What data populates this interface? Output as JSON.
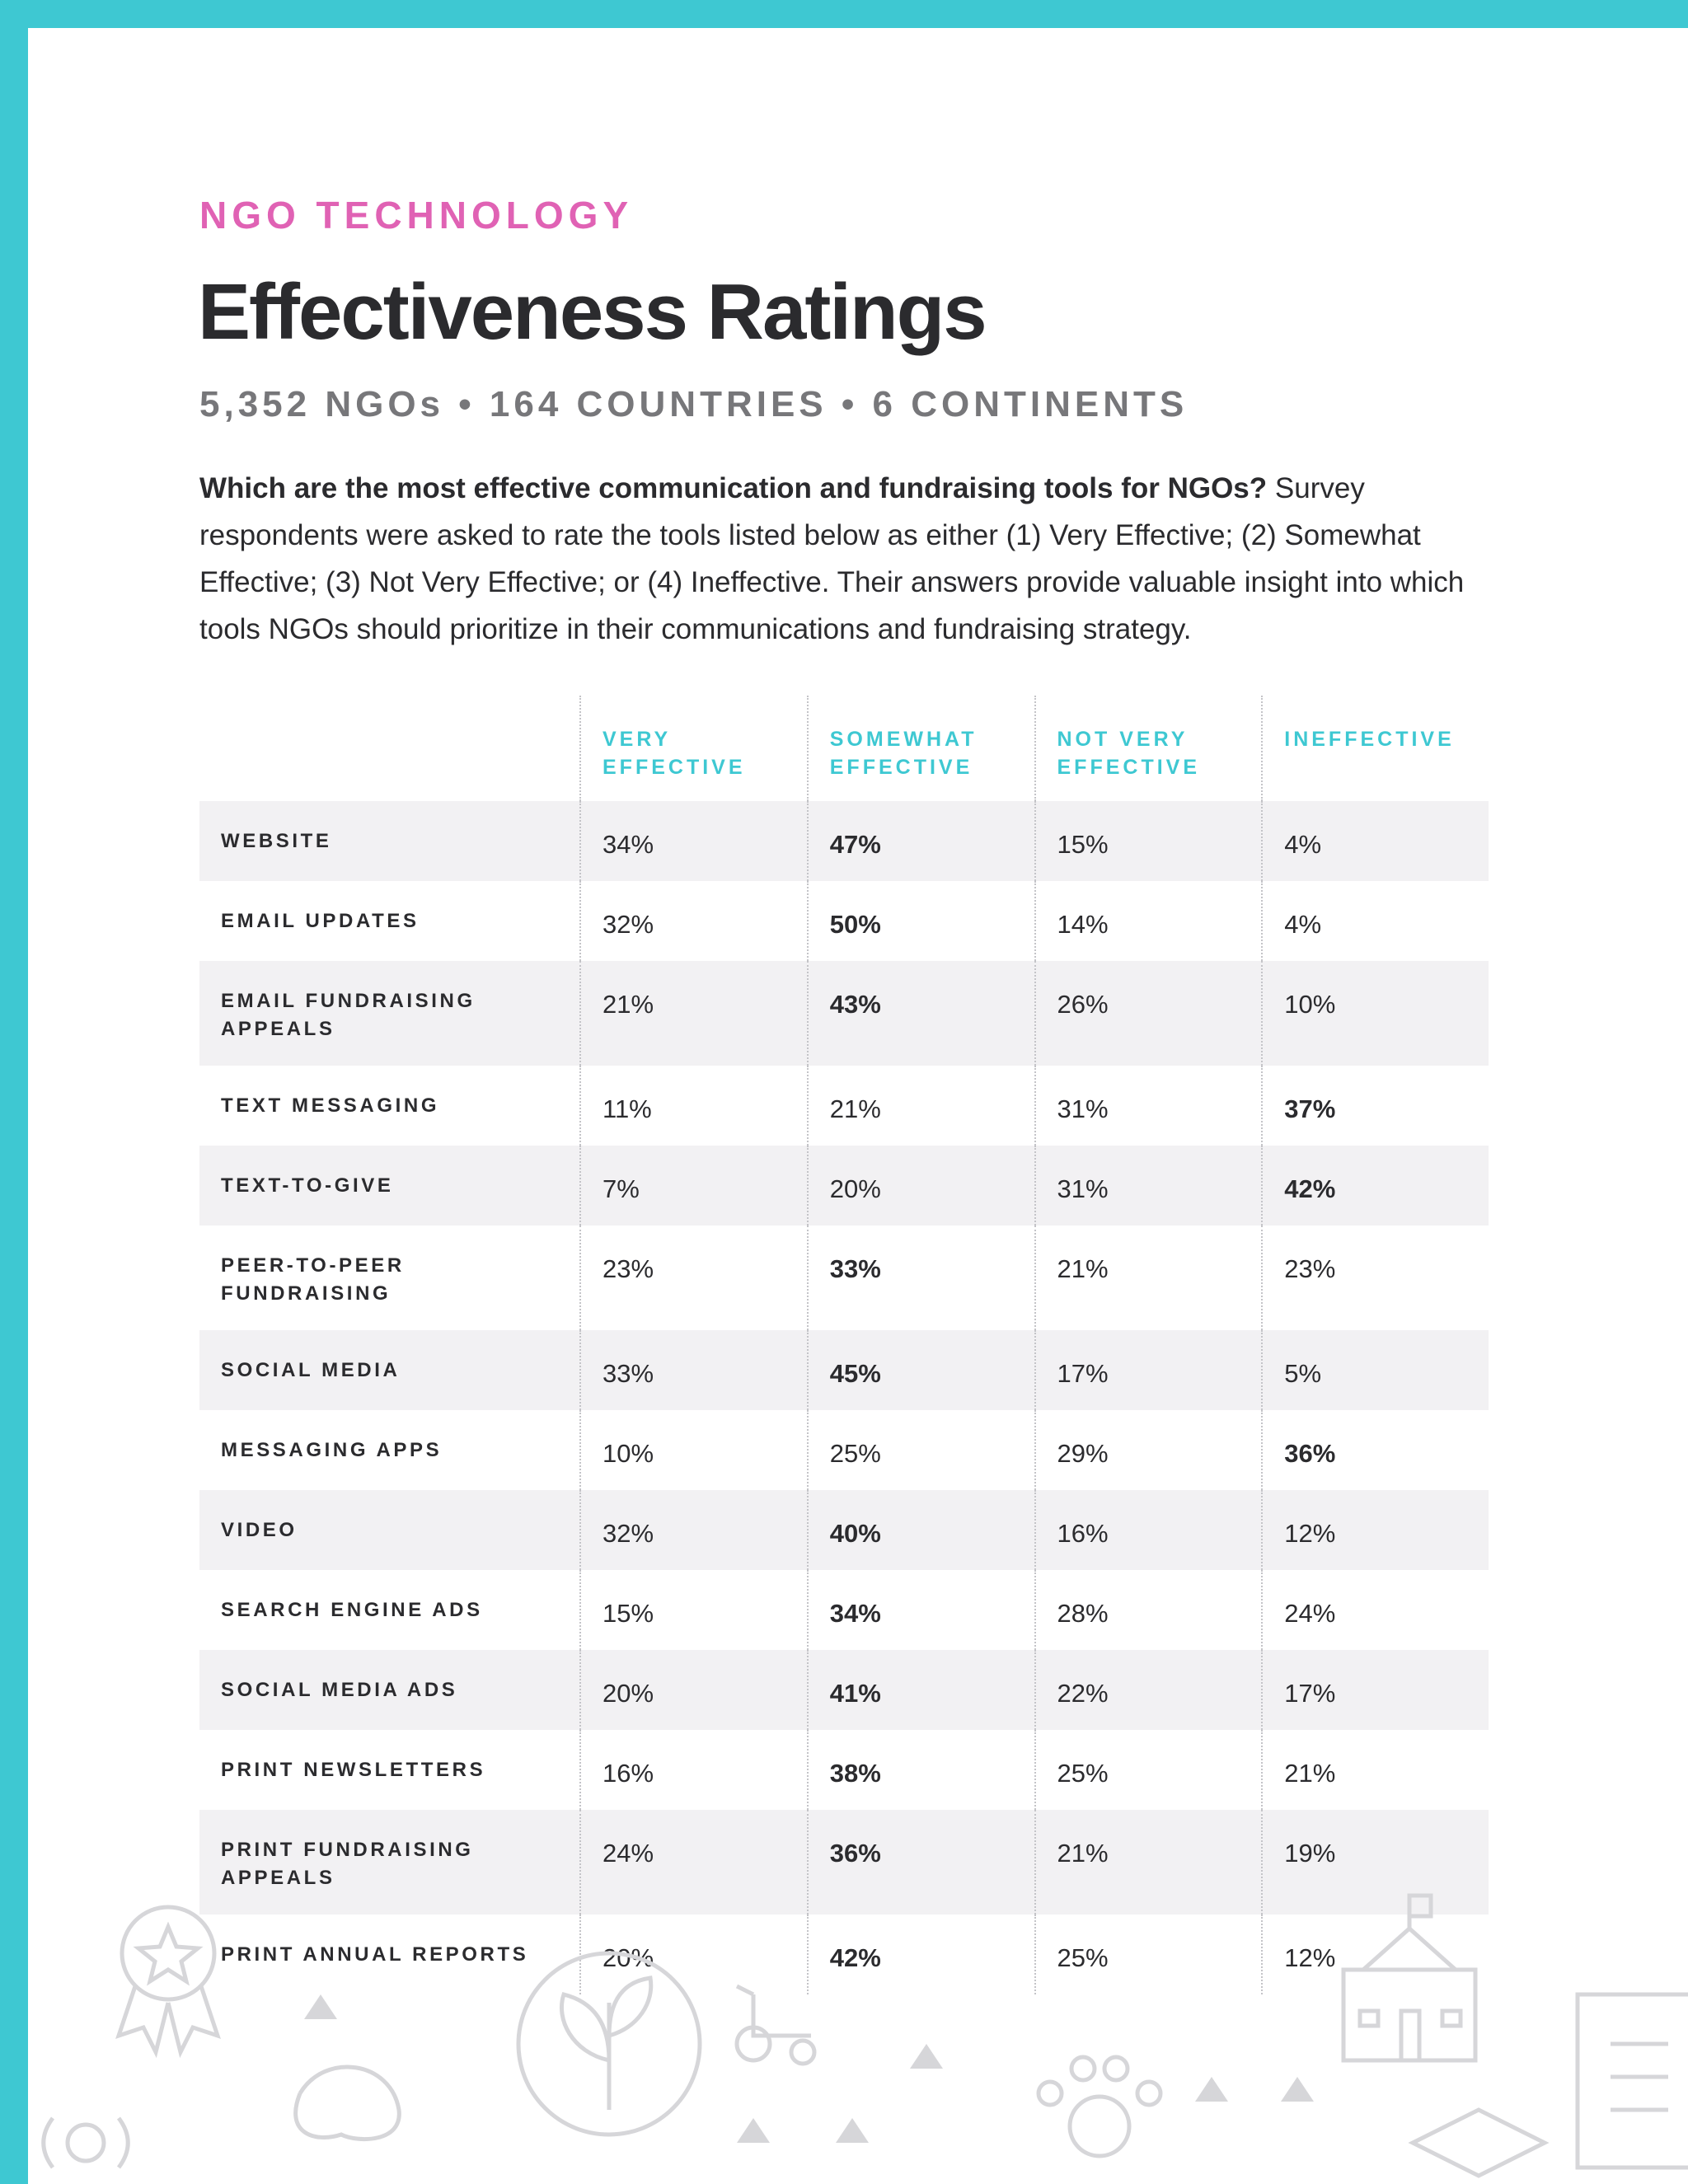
{
  "header": {
    "eyebrow": "NGO TECHNOLOGY",
    "title": "Effectiveness Ratings",
    "subtitle": "5,352 NGOs • 164 COUNTRIES • 6 CONTINENTS"
  },
  "intro": {
    "lead": "Which are the most effective communication and fundraising tools for NGOs?",
    "text": "Survey respondents were asked to rate the tools listed below as either (1) Very Effective; (2) Somewhat Effective; (3) Not Very Effective; or (4) Ineffective. Their answers provide valuable insight into which tools NGOs should prioritize in their communications and fundraising strategy."
  },
  "table": {
    "columns": [
      "VERY EFFECTIVE",
      "SOMEWHAT EFFECTIVE",
      "NOT VERY EFFECTIVE",
      "INEFFECTIVE"
    ],
    "rows": [
      [
        "WEBSITE",
        "34%",
        "47%",
        "15%",
        "4%"
      ],
      [
        "EMAIL UPDATES",
        "32%",
        "50%",
        "14%",
        "4%"
      ],
      [
        "EMAIL FUNDRAISING APPEALS",
        "21%",
        "43%",
        "26%",
        "10%"
      ],
      [
        "TEXT MESSAGING",
        "11%",
        "21%",
        "31%",
        "37%"
      ],
      [
        "TEXT-TO-GIVE",
        "7%",
        "20%",
        "31%",
        "42%"
      ],
      [
        "PEER-TO-PEER FUNDRAISING",
        "23%",
        "33%",
        "21%",
        "23%"
      ],
      [
        "SOCIAL MEDIA",
        "33%",
        "45%",
        "17%",
        "5%"
      ],
      [
        "MESSAGING APPS",
        "10%",
        "25%",
        "29%",
        "36%"
      ],
      [
        "VIDEO",
        "32%",
        "40%",
        "16%",
        "12%"
      ],
      [
        "SEARCH ENGINE ADS",
        "15%",
        "34%",
        "28%",
        "24%"
      ],
      [
        "SOCIAL MEDIA ADS",
        "20%",
        "41%",
        "22%",
        "17%"
      ],
      [
        "PRINT NEWSLETTERS",
        "16%",
        "38%",
        "25%",
        "21%"
      ],
      [
        "PRINT FUNDRAISING APPEALS",
        "24%",
        "36%",
        "21%",
        "19%"
      ],
      [
        "PRINT ANNUAL REPORTS",
        "20%",
        "42%",
        "25%",
        "12%"
      ]
    ]
  }
}
